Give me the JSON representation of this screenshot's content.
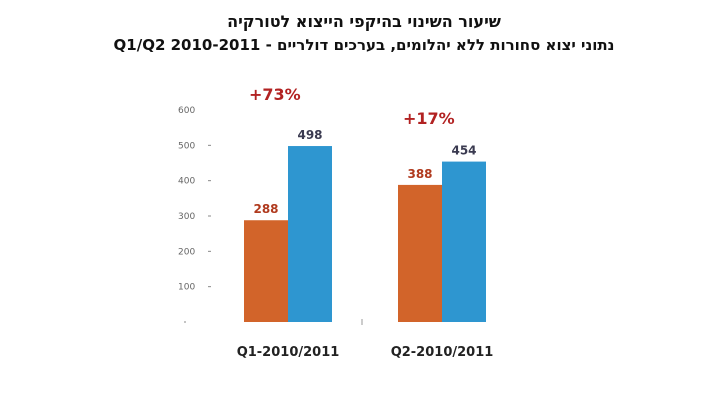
{
  "chart_data": {
    "type": "bar",
    "title": "שיעור השינוי בהיקפי הייצוא לטורקיה",
    "subtitle": "נתוני יצוא סחורות ללא יהלומים, בערכים דולריים - Q1/Q2 2010-2011",
    "categories": [
      "Q1-2010/2011",
      "Q2-2010/2011"
    ],
    "series": [
      {
        "values": [
          288,
          388
        ],
        "color": "#d2642a",
        "label_color": "#b03a1e"
      },
      {
        "values": [
          498,
          454
        ],
        "color": "#2e96d0",
        "label_color": "#3a3a50"
      }
    ],
    "changes": [
      "+73%",
      "+17%"
    ],
    "change_color": "#b22222",
    "ylim": [
      0,
      600
    ],
    "yticks": [
      "600",
      "500",
      "400",
      "300",
      "200",
      "100"
    ],
    "grid": false,
    "legend": "none"
  }
}
